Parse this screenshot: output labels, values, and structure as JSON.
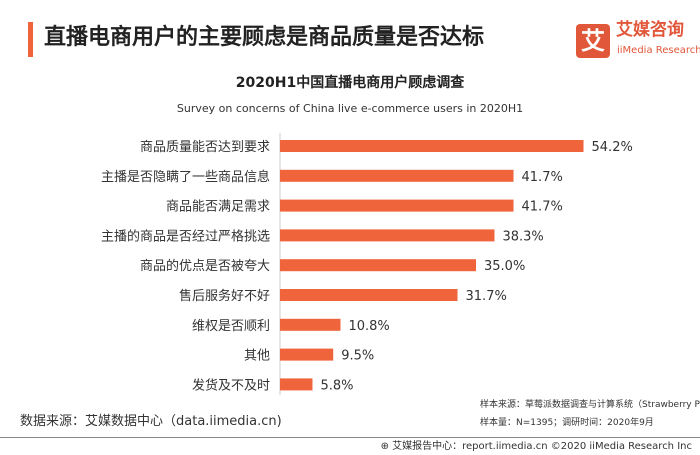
{
  "header": {
    "title": "直播电商用户的主要顾虑是商品质量是否达标",
    "logo_mark": "艾",
    "logo_cn": "艾媒咨询",
    "logo_en": "iiMedia Research"
  },
  "colors": {
    "bar": "#f0643c",
    "accent": "#e1573a"
  },
  "chart_data": {
    "type": "bar",
    "orientation": "horizontal",
    "title": "2020H1中国直播电商用户顾虑调查",
    "subtitle": "Survey on concerns of China live e-commerce users  in 2020H1",
    "categories": [
      "商品质量能否达到要求",
      "主播是否隐瞒了一些商品信息",
      "商品能否满足需求",
      "主播的商品是否经过严格挑选",
      "商品的优点是否被夸大",
      "售后服务好不好",
      "维权是否顺利",
      "其他",
      "发货及不及时"
    ],
    "values": [
      54.2,
      41.7,
      41.7,
      38.3,
      35.0,
      31.7,
      10.8,
      9.5,
      5.8
    ],
    "value_labels": [
      "54.2%",
      "41.7%",
      "41.7%",
      "38.3%",
      "35.0%",
      "31.7%",
      "10.8%",
      "9.5%",
      "5.8%"
    ],
    "unit": "%",
    "grid": false,
    "legend": "none"
  },
  "footer": {
    "source": "数据来源：艾媒数据中心（data.iimedia.cn)",
    "sample_source": "样本来源：草莓派数据调查与计算系统（Strawberry Pie)",
    "sample_size": "样本量：N=1395；调研时间：2020年9月",
    "report": "艾媒报告中心：report.iimedia.cn  ©2020  iiMedia Research  Inc"
  }
}
